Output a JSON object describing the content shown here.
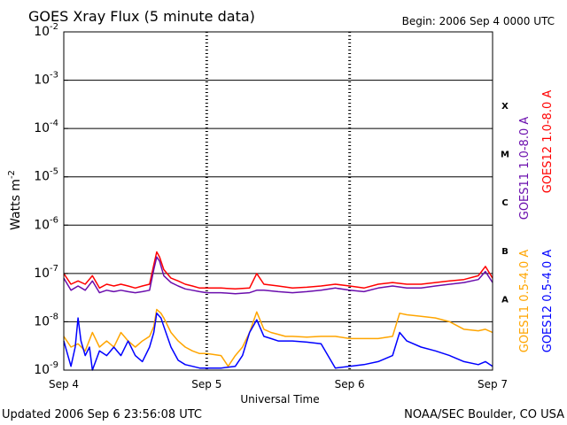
{
  "title": "GOES Xray Flux (5 minute data)",
  "begin_label": "Begin:  2006 Sep 4 0000 UTC",
  "updated": "Updated 2006 Sep  6 23:56:08 UTC",
  "credit": "NOAA/SEC Boulder, CO USA",
  "colors": {
    "goes11_long": "#6a0dad",
    "goes12_long": "#ff0000",
    "goes11_short": "#ffa500",
    "goes12_short": "#0000ff"
  },
  "chart_data": {
    "type": "line",
    "xlabel": "Universal Time",
    "ylabel": "Watts m",
    "ylabel_exp": "-2",
    "y_scale": "log",
    "ylim": [
      1e-09,
      0.01
    ],
    "xlim": [
      0,
      3
    ],
    "grid": true,
    "x_tick_labels": [
      "Sep 4",
      "Sep 5",
      "Sep 6",
      "Sep 7"
    ],
    "y_tick_labels": [
      {
        "base": "10",
        "exp": "-9",
        "value": 1e-09
      },
      {
        "base": "10",
        "exp": "-8",
        "value": 1e-08
      },
      {
        "base": "10",
        "exp": "-7",
        "value": 1e-07
      },
      {
        "base": "10",
        "exp": "-6",
        "value": 1e-06
      },
      {
        "base": "10",
        "exp": "-5",
        "value": 1e-05
      },
      {
        "base": "10",
        "exp": "-4",
        "value": 0.0001
      },
      {
        "base": "10",
        "exp": "-3",
        "value": 0.001
      },
      {
        "base": "10",
        "exp": "-2",
        "value": 0.01
      }
    ],
    "flare_classes": [
      {
        "label": "A",
        "value": 3e-08
      },
      {
        "label": "B",
        "value": 3e-07
      },
      {
        "label": "C",
        "value": 3e-06
      },
      {
        "label": "M",
        "value": 3e-05
      },
      {
        "label": "X",
        "value": 0.0003
      }
    ],
    "x_unit": "days since Sep 4 0000 UTC",
    "series": [
      {
        "name": "GOES12 1.0-8.0 A",
        "color_key": "goes12_long",
        "x": [
          0,
          0.05,
          0.1,
          0.15,
          0.2,
          0.25,
          0.3,
          0.35,
          0.4,
          0.45,
          0.5,
          0.55,
          0.6,
          0.63,
          0.65,
          0.67,
          0.7,
          0.75,
          0.8,
          0.85,
          0.9,
          0.95,
          1.0,
          1.1,
          1.2,
          1.3,
          1.35,
          1.4,
          1.5,
          1.6,
          1.7,
          1.8,
          1.9,
          2.0,
          2.1,
          2.2,
          2.3,
          2.4,
          2.5,
          2.6,
          2.7,
          2.8,
          2.9,
          2.95,
          3.0
        ],
        "y": [
          1e-07,
          6e-08,
          7e-08,
          6e-08,
          9e-08,
          5e-08,
          6e-08,
          5.5e-08,
          6e-08,
          5.5e-08,
          5e-08,
          5.5e-08,
          6e-08,
          1.5e-07,
          2.8e-07,
          2.2e-07,
          1.2e-07,
          8e-08,
          7e-08,
          6e-08,
          5.5e-08,
          5e-08,
          5e-08,
          5e-08,
          4.8e-08,
          5e-08,
          1e-07,
          6e-08,
          5.5e-08,
          5e-08,
          5.2e-08,
          5.5e-08,
          6e-08,
          5.5e-08,
          5e-08,
          6e-08,
          6.5e-08,
          6e-08,
          6e-08,
          6.5e-08,
          7e-08,
          7.5e-08,
          9e-08,
          1.4e-07,
          8e-08
        ]
      },
      {
        "name": "GOES11 1.0-8.0 A",
        "color_key": "goes11_long",
        "x": [
          0,
          0.05,
          0.1,
          0.15,
          0.2,
          0.25,
          0.3,
          0.35,
          0.4,
          0.45,
          0.5,
          0.55,
          0.6,
          0.63,
          0.65,
          0.67,
          0.7,
          0.75,
          0.8,
          0.85,
          0.9,
          0.95,
          1.0,
          1.1,
          1.2,
          1.3,
          1.35,
          1.4,
          1.5,
          1.6,
          1.7,
          1.8,
          1.9,
          2.0,
          2.1,
          2.2,
          2.3,
          2.4,
          2.5,
          2.6,
          2.7,
          2.8,
          2.9,
          2.95,
          3.0
        ],
        "y": [
          8e-08,
          4.5e-08,
          5.5e-08,
          4.5e-08,
          7e-08,
          4e-08,
          4.5e-08,
          4.2e-08,
          4.5e-08,
          4.2e-08,
          4e-08,
          4.2e-08,
          4.5e-08,
          1.2e-07,
          2.2e-07,
          1.8e-07,
          9e-08,
          6.5e-08,
          5.5e-08,
          4.8e-08,
          4.5e-08,
          4.2e-08,
          4e-08,
          4e-08,
          3.8e-08,
          4e-08,
          4.5e-08,
          4.5e-08,
          4.2e-08,
          4e-08,
          4.2e-08,
          4.5e-08,
          5e-08,
          4.5e-08,
          4.2e-08,
          5e-08,
          5.5e-08,
          5e-08,
          5e-08,
          5.5e-08,
          6e-08,
          6.5e-08,
          7.5e-08,
          1.1e-07,
          6.5e-08
        ]
      },
      {
        "name": "GOES11 0.5-4.0 A",
        "color_key": "goes11_short",
        "x": [
          0,
          0.05,
          0.1,
          0.15,
          0.2,
          0.25,
          0.3,
          0.35,
          0.4,
          0.45,
          0.5,
          0.55,
          0.6,
          0.63,
          0.65,
          0.68,
          0.7,
          0.75,
          0.8,
          0.85,
          0.9,
          0.95,
          1.0,
          1.1,
          1.15,
          1.2,
          1.25,
          1.3,
          1.35,
          1.4,
          1.45,
          1.5,
          1.55,
          1.6,
          1.7,
          1.8,
          1.9,
          2.0,
          2.1,
          2.2,
          2.3,
          2.35,
          2.4,
          2.5,
          2.6,
          2.7,
          2.8,
          2.9,
          2.95,
          3.0
        ],
        "y": [
          5e-09,
          3e-09,
          3.5e-09,
          2.5e-09,
          6e-09,
          3e-09,
          4e-09,
          3e-09,
          6e-09,
          4e-09,
          3e-09,
          4e-09,
          5e-09,
          8e-09,
          1.8e-08,
          1.5e-08,
          1.2e-08,
          6e-09,
          4e-09,
          3e-09,
          2.5e-09,
          2.2e-09,
          2.2e-09,
          2e-09,
          1.2e-09,
          2e-09,
          3e-09,
          6e-09,
          1.6e-08,
          7e-09,
          6e-09,
          5.5e-09,
          5e-09,
          5e-09,
          4.8e-09,
          5e-09,
          5e-09,
          4.5e-09,
          4.5e-09,
          4.5e-09,
          5e-09,
          1.5e-08,
          1.4e-08,
          1.3e-08,
          1.2e-08,
          1e-08,
          7e-09,
          6.5e-09,
          7e-09,
          6e-09
        ]
      },
      {
        "name": "GOES12 0.5-4.0 A",
        "color_key": "goes12_short",
        "x": [
          0,
          0.05,
          0.08,
          0.1,
          0.12,
          0.15,
          0.18,
          0.2,
          0.25,
          0.3,
          0.35,
          0.4,
          0.45,
          0.5,
          0.55,
          0.6,
          0.63,
          0.65,
          0.68,
          0.7,
          0.75,
          0.8,
          0.85,
          0.9,
          0.95,
          1.0,
          1.1,
          1.2,
          1.25,
          1.3,
          1.35,
          1.4,
          1.45,
          1.5,
          1.6,
          1.7,
          1.8,
          1.9,
          2.0,
          2.1,
          2.2,
          2.3,
          2.35,
          2.4,
          2.5,
          2.6,
          2.7,
          2.8,
          2.9,
          2.95,
          3.0
        ],
        "y": [
          4e-09,
          1.2e-09,
          3e-09,
          1.2e-08,
          4e-09,
          2e-09,
          3e-09,
          1e-09,
          2.5e-09,
          2e-09,
          3e-09,
          2e-09,
          4e-09,
          2e-09,
          1.5e-09,
          3e-09,
          6e-09,
          1.5e-08,
          1.2e-08,
          8e-09,
          3e-09,
          1.6e-09,
          1.3e-09,
          1.2e-09,
          1.1e-09,
          1.1e-09,
          1.1e-09,
          1.2e-09,
          2e-09,
          6e-09,
          1.1e-08,
          5e-09,
          4.5e-09,
          4e-09,
          4e-09,
          3.8e-09,
          3.5e-09,
          1.1e-09,
          1.2e-09,
          1.3e-09,
          1.5e-09,
          2e-09,
          6e-09,
          4e-09,
          3e-09,
          2.5e-09,
          2e-09,
          1.5e-09,
          1.3e-09,
          1.5e-09,
          1.2e-09
        ]
      }
    ]
  }
}
